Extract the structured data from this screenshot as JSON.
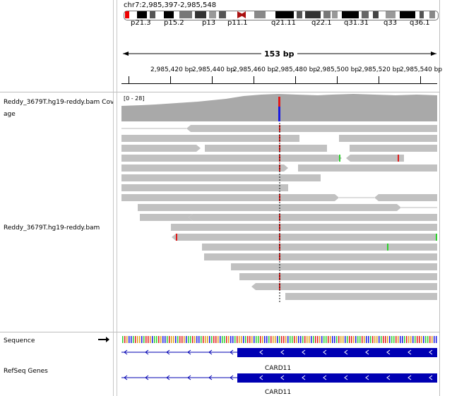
{
  "header": {
    "locus": "chr7:2,985,397-2,985,548",
    "span_label": "153 bp",
    "bands": [
      "p21.3",
      "p15.2",
      "p13",
      "p11.1",
      "q21.11",
      "q22.1",
      "q31.31",
      "q33",
      "q36.1"
    ],
    "ruler_ticks": [
      "2,985,420 bp",
      "2,985,440 bp",
      "2,985,460 bp",
      "2,985,480 bp",
      "2,985,500 bp",
      "2,985,520 bp",
      "2,985,540 bp"
    ]
  },
  "tracks": {
    "coverage_name": "Reddy_3679T.hg19-reddy.bam Cov",
    "coverage_name_cont": "age",
    "coverage_range": "[0 - 28]",
    "alignment_name": "Reddy_3679T.hg19-reddy.bam",
    "sequence_name": "Sequence",
    "refseq_name": "RefSeq Genes",
    "gene_label_1": "CARD11",
    "gene_label_2": "CARD11"
  },
  "colors": {
    "read": "#c1c1c1",
    "coverage": "#a9a9a9",
    "gene": "#0000b3",
    "mismatch_red": "#e01b1b",
    "mismatch_green": "#2ed12e"
  },
  "icons": {
    "strand_arrow": "arrow-right-icon"
  }
}
